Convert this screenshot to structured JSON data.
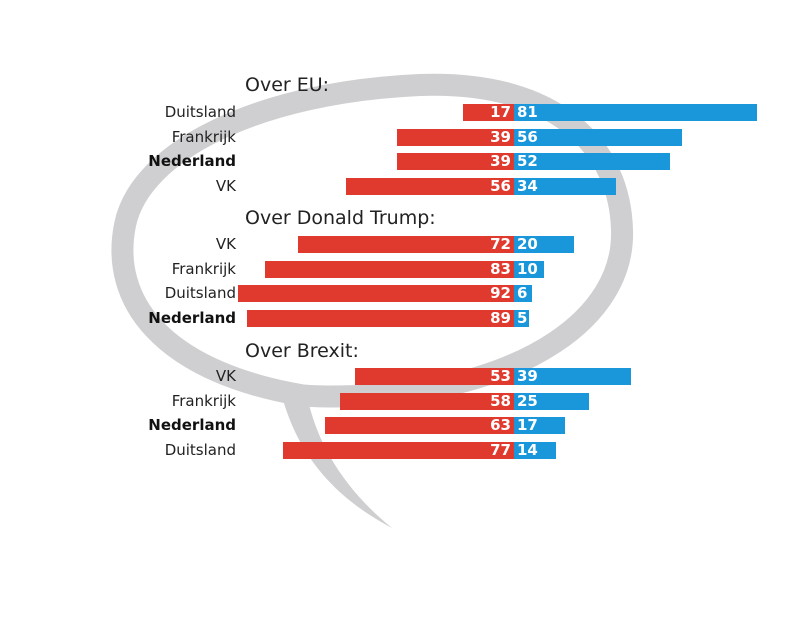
{
  "colors": {
    "negative": "#e03a2f",
    "positive": "#1a97db",
    "bubble": "#cfcfd1"
  },
  "chart_data": {
    "type": "bar",
    "orientation": "horizontal-diverging",
    "series_names": [
      "negative",
      "positive"
    ],
    "groups": [
      {
        "title": "Over EU:",
        "rows": [
          {
            "label": "Duitsland",
            "bold": false,
            "negative": 17,
            "positive": 81
          },
          {
            "label": "Frankrijk",
            "bold": false,
            "negative": 39,
            "positive": 56
          },
          {
            "label": "Nederland",
            "bold": true,
            "negative": 39,
            "positive": 52
          },
          {
            "label": "VK",
            "bold": false,
            "negative": 56,
            "positive": 34
          }
        ]
      },
      {
        "title": "Over Donald Trump:",
        "rows": [
          {
            "label": "VK",
            "bold": false,
            "negative": 72,
            "positive": 20
          },
          {
            "label": "Frankrijk",
            "bold": false,
            "negative": 83,
            "positive": 10
          },
          {
            "label": "Duitsland",
            "bold": false,
            "negative": 92,
            "positive": 6
          },
          {
            "label": "Nederland",
            "bold": true,
            "negative": 89,
            "positive": 5
          }
        ]
      },
      {
        "title": "Over Brexit:",
        "rows": [
          {
            "label": "VK",
            "bold": false,
            "negative": 53,
            "positive": 39
          },
          {
            "label": "Frankrijk",
            "bold": false,
            "negative": 58,
            "positive": 25
          },
          {
            "label": "Nederland",
            "bold": true,
            "negative": 63,
            "positive": 17
          },
          {
            "label": "Duitsland",
            "bold": false,
            "negative": 77,
            "positive": 14
          }
        ]
      }
    ]
  }
}
